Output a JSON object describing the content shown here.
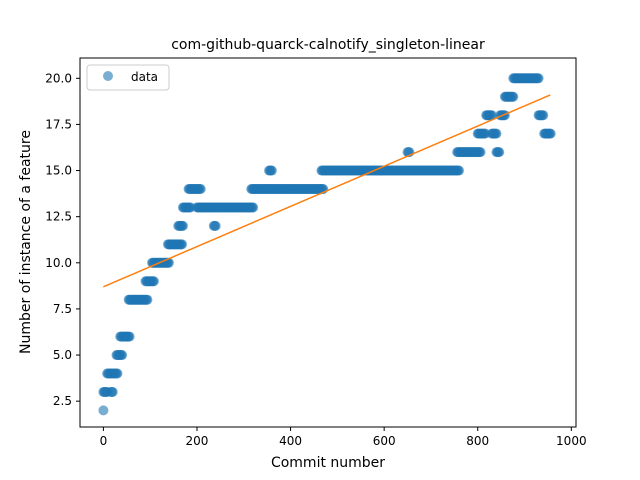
{
  "chart_data": {
    "type": "scatter",
    "title": "com-github-quarck-calnotify_singleton-linear",
    "xlabel": "Commit number",
    "ylabel": "Number of instance of a feature",
    "xlim": [
      -50,
      1010
    ],
    "ylim": [
      1.1,
      21.1
    ],
    "xticks": [
      0,
      200,
      400,
      600,
      800,
      1000
    ],
    "yticks": [
      2.5,
      5.0,
      7.5,
      10.0,
      12.5,
      15.0,
      17.5,
      20.0
    ],
    "xtick_labels": [
      "0",
      "200",
      "400",
      "600",
      "800",
      "1000"
    ],
    "ytick_labels": [
      "2.5",
      "5.0",
      "7.5",
      "10.0",
      "12.5",
      "15.0",
      "17.5",
      "20.0"
    ],
    "grid": false,
    "legend": {
      "position": "top-left",
      "entries": [
        "data"
      ]
    },
    "colors": {
      "data": "#1f77b4",
      "fit": "#ff7f0e"
    },
    "series": [
      {
        "name": "data",
        "kind": "scatter",
        "segments": [
          {
            "x_start": 0,
            "x_end": 0,
            "y": 2
          },
          {
            "x_start": 0,
            "x_end": 8,
            "y": 3
          },
          {
            "x_start": 16,
            "x_end": 20,
            "y": 3
          },
          {
            "x_start": 8,
            "x_end": 30,
            "y": 4
          },
          {
            "x_start": 28,
            "x_end": 40,
            "y": 5
          },
          {
            "x_start": 36,
            "x_end": 56,
            "y": 6
          },
          {
            "x_start": 54,
            "x_end": 94,
            "y": 8
          },
          {
            "x_start": 90,
            "x_end": 108,
            "y": 9
          },
          {
            "x_start": 104,
            "x_end": 140,
            "y": 10
          },
          {
            "x_start": 138,
            "x_end": 168,
            "y": 11
          },
          {
            "x_start": 160,
            "x_end": 170,
            "y": 12
          },
          {
            "x_start": 236,
            "x_end": 240,
            "y": 12
          },
          {
            "x_start": 170,
            "x_end": 186,
            "y": 13
          },
          {
            "x_start": 200,
            "x_end": 320,
            "y": 13
          },
          {
            "x_start": 182,
            "x_end": 208,
            "y": 14
          },
          {
            "x_start": 316,
            "x_end": 470,
            "y": 14
          },
          {
            "x_start": 354,
            "x_end": 360,
            "y": 15
          },
          {
            "x_start": 466,
            "x_end": 760,
            "y": 15
          },
          {
            "x_start": 650,
            "x_end": 654,
            "y": 16
          },
          {
            "x_start": 756,
            "x_end": 806,
            "y": 16
          },
          {
            "x_start": 840,
            "x_end": 846,
            "y": 16
          },
          {
            "x_start": 800,
            "x_end": 816,
            "y": 17
          },
          {
            "x_start": 830,
            "x_end": 840,
            "y": 17
          },
          {
            "x_start": 942,
            "x_end": 956,
            "y": 17
          },
          {
            "x_start": 818,
            "x_end": 830,
            "y": 18
          },
          {
            "x_start": 848,
            "x_end": 858,
            "y": 18
          },
          {
            "x_start": 930,
            "x_end": 940,
            "y": 18
          },
          {
            "x_start": 858,
            "x_end": 876,
            "y": 19
          },
          {
            "x_start": 876,
            "x_end": 930,
            "y": 20
          }
        ]
      },
      {
        "name": "",
        "kind": "line",
        "x": [
          0,
          955
        ],
        "y": [
          8.7,
          19.1
        ]
      }
    ]
  }
}
